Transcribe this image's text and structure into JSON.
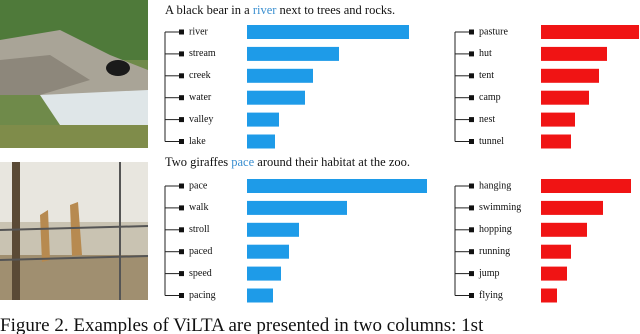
{
  "sentences": [
    [
      "A black bear in a ",
      "river",
      " next to trees and rocks."
    ],
    [
      "Two giraffes ",
      "pace",
      " around their habitat at the zoo."
    ]
  ],
  "caption": "Figure 2. Examples of ViLTA are presented in two columns: 1st",
  "chart_data": [
    {
      "type": "bar",
      "orientation": "horizontal",
      "color": "#1e9be8",
      "categories": [
        "river",
        "stream",
        "creek",
        "water",
        "valley",
        "lake"
      ],
      "values": [
        0.81,
        0.46,
        0.33,
        0.29,
        0.16,
        0.14
      ]
    },
    {
      "type": "bar",
      "orientation": "horizontal",
      "color": "#f01414",
      "categories": [
        "pasture",
        "hut",
        "tent",
        "camp",
        "nest",
        "tunnel"
      ],
      "values": [
        0.49,
        0.33,
        0.29,
        0.24,
        0.17,
        0.15
      ]
    },
    {
      "type": "bar",
      "orientation": "horizontal",
      "color": "#1e9be8",
      "categories": [
        "pace",
        "walk",
        "stroll",
        "paced",
        "speed",
        "pacing"
      ],
      "values": [
        0.9,
        0.5,
        0.26,
        0.21,
        0.17,
        0.13
      ]
    },
    {
      "type": "bar",
      "orientation": "horizontal",
      "color": "#f01414",
      "categories": [
        "hanging",
        "swimming",
        "hopping",
        "running",
        "jump",
        "flying"
      ],
      "values": [
        0.45,
        0.31,
        0.23,
        0.15,
        0.13,
        0.08
      ]
    }
  ]
}
